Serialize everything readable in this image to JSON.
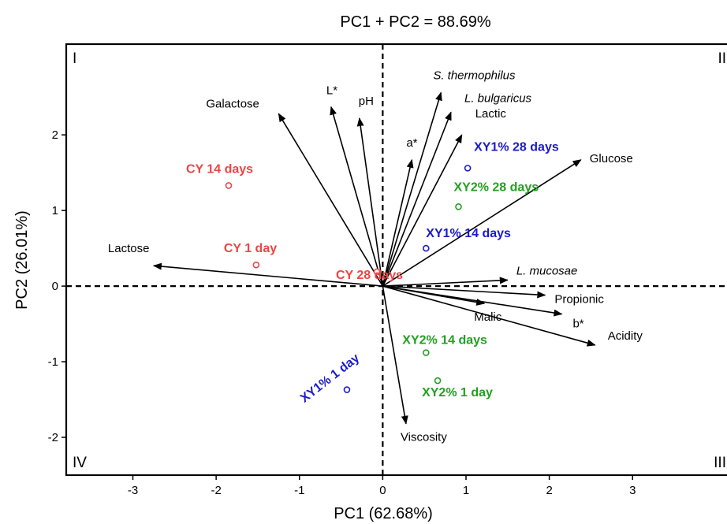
{
  "chart_data": {
    "type": "scatter",
    "subtype": "pca-biplot",
    "title": "PC1 + PC2 = 88.69%",
    "xlabel": "PC1 (62.68%)",
    "ylabel": "PC2 (26.01%)",
    "xlim": [
      -3.8,
      4.2
    ],
    "ylim": [
      -2.5,
      3.2
    ],
    "xticks": [
      -3,
      -2,
      -1,
      0,
      1,
      2,
      3
    ],
    "yticks": [
      -2,
      -1,
      0,
      1,
      2
    ],
    "grid": false,
    "reference_lines": {
      "x": 0,
      "y": 0,
      "style": "dashed"
    },
    "quadrants": [
      {
        "label": "I",
        "position": "top-left"
      },
      {
        "label": "II",
        "position": "top-right"
      },
      {
        "label": "III",
        "position": "bottom-right"
      },
      {
        "label": "IV",
        "position": "bottom-left"
      }
    ],
    "colors": {
      "CY": "#ee4444",
      "XY1%": "#1a1acc",
      "XY2%": "#22a022",
      "loadings": "#000000"
    },
    "loadings": [
      {
        "name": "Galactose",
        "x": -1.25,
        "y": 2.28,
        "italic": false
      },
      {
        "name": "L*",
        "x": -0.62,
        "y": 2.37,
        "italic": false
      },
      {
        "name": "pH",
        "x": -0.28,
        "y": 2.22,
        "italic": false
      },
      {
        "name": "S. thermophilus",
        "x": 0.7,
        "y": 2.56,
        "italic": true
      },
      {
        "name": "L. bulgaricus",
        "x": 0.82,
        "y": 2.3,
        "italic": true
      },
      {
        "name": "Lactic",
        "x": 0.95,
        "y": 2.0,
        "italic": false
      },
      {
        "name": "a*",
        "x": 0.35,
        "y": 1.67,
        "italic": false
      },
      {
        "name": "Glucose",
        "x": 2.38,
        "y": 1.67,
        "italic": false
      },
      {
        "name": "Lactose",
        "x": -2.75,
        "y": 0.27,
        "italic": false
      },
      {
        "name": "L. mucosae",
        "x": 1.5,
        "y": 0.08,
        "italic": true
      },
      {
        "name": "Propionic",
        "x": 1.95,
        "y": -0.12,
        "italic": false
      },
      {
        "name": "Malic",
        "x": 1.22,
        "y": -0.23,
        "italic": false
      },
      {
        "name": "b*",
        "x": 2.15,
        "y": -0.37,
        "italic": false
      },
      {
        "name": "Acidity",
        "x": 2.55,
        "y": -0.78,
        "italic": false
      },
      {
        "name": "Viscosity",
        "x": 0.28,
        "y": -1.82,
        "italic": false
      }
    ],
    "samples": [
      {
        "name": "CY 14 days",
        "group": "CY",
        "x": -1.85,
        "y": 1.33
      },
      {
        "name": "CY 1 day",
        "group": "CY",
        "x": -1.52,
        "y": 0.28
      },
      {
        "name": "CY 28 days",
        "group": "CY",
        "x": -0.07,
        "y": 0.19
      },
      {
        "name": "XY1% 28 days",
        "group": "XY1%",
        "x": 1.02,
        "y": 1.56
      },
      {
        "name": "XY1% 14 days",
        "group": "XY1%",
        "x": 0.52,
        "y": 0.5
      },
      {
        "name": "XY1% 1 day",
        "group": "XY1%",
        "x": -0.43,
        "y": -1.37
      },
      {
        "name": "XY2% 28 days",
        "group": "XY2%",
        "x": 0.91,
        "y": 1.05
      },
      {
        "name": "XY2% 14 days",
        "group": "XY2%",
        "x": 0.52,
        "y": -0.88
      },
      {
        "name": "XY2% 1 day",
        "group": "XY2%",
        "x": 0.66,
        "y": -1.25
      }
    ]
  }
}
